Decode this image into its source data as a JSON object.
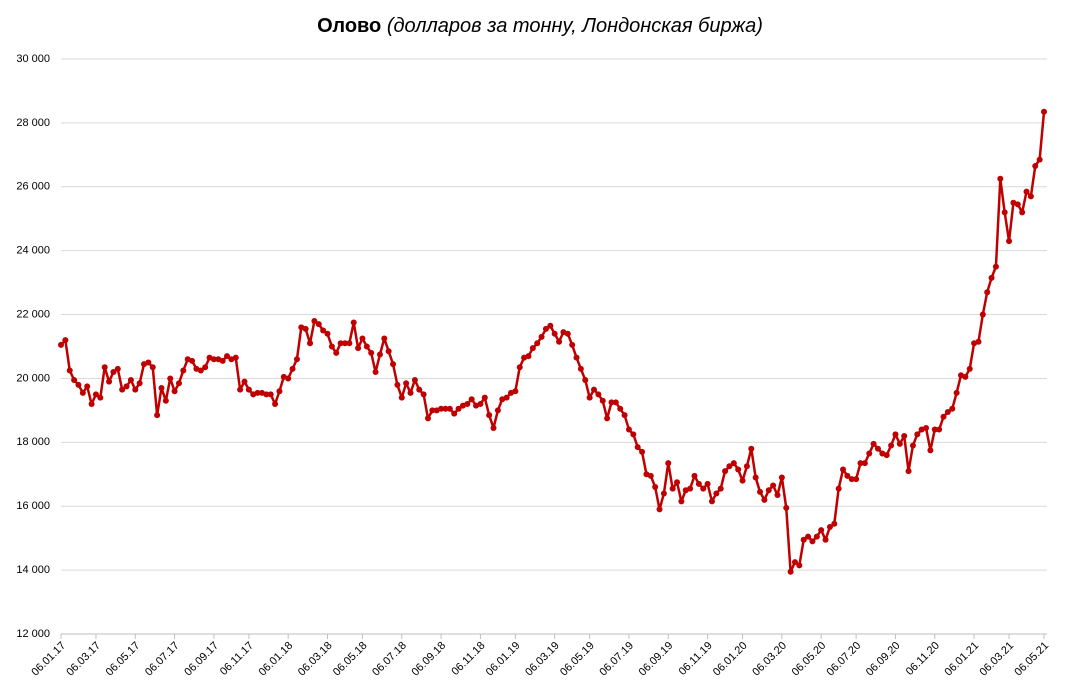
{
  "chart_data": {
    "type": "line",
    "title": "Олово",
    "subtitle": "(долларов за тонну, Лондонская биржа)",
    "categories": [
      "06.01.17",
      null,
      null,
      null,
      null,
      null,
      null,
      null,
      "06.03.17",
      null,
      null,
      null,
      null,
      null,
      null,
      null,
      null,
      "06.05.17",
      null,
      null,
      null,
      null,
      null,
      null,
      null,
      null,
      "06.07.17",
      null,
      null,
      null,
      null,
      null,
      null,
      null,
      null,
      "06.09.17",
      null,
      null,
      null,
      null,
      null,
      null,
      null,
      "06.11.17",
      null,
      null,
      null,
      null,
      null,
      null,
      null,
      null,
      "06.01.18",
      null,
      null,
      null,
      null,
      null,
      null,
      null,
      null,
      "06.03.18",
      null,
      null,
      null,
      null,
      null,
      null,
      null,
      "06.05.18",
      null,
      null,
      null,
      null,
      null,
      null,
      null,
      null,
      "06.07.18",
      null,
      null,
      null,
      null,
      null,
      null,
      null,
      null,
      "06.09.18",
      null,
      null,
      null,
      null,
      null,
      null,
      null,
      null,
      "06.11.18",
      null,
      null,
      null,
      null,
      null,
      null,
      null,
      "06.01.19",
      null,
      null,
      null,
      null,
      null,
      null,
      null,
      null,
      "06.03.19",
      null,
      null,
      null,
      null,
      null,
      null,
      null,
      "06.05.19",
      null,
      null,
      null,
      null,
      null,
      null,
      null,
      null,
      "06.07.19",
      null,
      null,
      null,
      null,
      null,
      null,
      null,
      null,
      "06.09.19",
      null,
      null,
      null,
      null,
      null,
      null,
      null,
      null,
      "06.11.19",
      null,
      null,
      null,
      null,
      null,
      null,
      null,
      "06.01.20",
      null,
      null,
      null,
      null,
      null,
      null,
      null,
      null,
      "06.03.20",
      null,
      null,
      null,
      null,
      null,
      null,
      null,
      null,
      "06.05.20",
      null,
      null,
      null,
      null,
      null,
      null,
      null,
      "06.07.20",
      null,
      null,
      null,
      null,
      null,
      null,
      null,
      null,
      "06.09.20",
      null,
      null,
      null,
      null,
      null,
      null,
      null,
      null,
      "06.11.20",
      null,
      null,
      null,
      null,
      null,
      null,
      null,
      null,
      "06.01.21",
      null,
      null,
      null,
      null,
      null,
      null,
      null,
      "06.03.21",
      null,
      null,
      null,
      null,
      null,
      null,
      null,
      "06.05.21"
    ],
    "values": [
      21050,
      21200,
      20250,
      19950,
      19800,
      19550,
      19750,
      19200,
      19500,
      19400,
      20350,
      19900,
      20200,
      20300,
      19650,
      19750,
      19950,
      19650,
      19850,
      20450,
      20500,
      20350,
      18850,
      19700,
      19300,
      20000,
      19600,
      19850,
      20250,
      20600,
      20550,
      20300,
      20250,
      20350,
      20650,
      20600,
      20600,
      20550,
      20700,
      20600,
      20650,
      19650,
      19900,
      19650,
      19500,
      19550,
      19550,
      19500,
      19500,
      19200,
      19600,
      20050,
      20000,
      20300,
      20600,
      21600,
      21550,
      21100,
      21800,
      21700,
      21500,
      21400,
      21000,
      20800,
      21100,
      21100,
      21100,
      21750,
      20950,
      21250,
      21000,
      20800,
      20200,
      20750,
      21250,
      20850,
      20450,
      19800,
      19400,
      19850,
      19550,
      19950,
      19650,
      19500,
      18750,
      19000,
      19000,
      19050,
      19050,
      19050,
      18900,
      19050,
      19150,
      19200,
      19350,
      19150,
      19200,
      19400,
      18850,
      18450,
      19000,
      19350,
      19400,
      19550,
      19600,
      20350,
      20650,
      20700,
      20950,
      21100,
      21300,
      21550,
      21650,
      21400,
      21150,
      21450,
      21400,
      21050,
      20650,
      20300,
      19950,
      19400,
      19650,
      19500,
      19300,
      18750,
      19250,
      19250,
      19050,
      18850,
      18400,
      18250,
      17850,
      17700,
      17000,
      16950,
      16600,
      15900,
      16400,
      17350,
      16550,
      16750,
      16150,
      16500,
      16550,
      16950,
      16700,
      16550,
      16700,
      16150,
      16400,
      16550,
      17100,
      17250,
      17350,
      17150,
      16800,
      17250,
      17800,
      16900,
      16450,
      16200,
      16500,
      16650,
      16350,
      16900,
      15950,
      13950,
      14250,
      14150,
      14950,
      15050,
      14900,
      15050,
      15250,
      14950,
      15350,
      15450,
      16550,
      17150,
      16950,
      16850,
      16850,
      17350,
      17350,
      17650,
      17950,
      17800,
      17650,
      17600,
      17900,
      18250,
      17950,
      18200,
      17100,
      17900,
      18250,
      18400,
      18450,
      17750,
      18400,
      18400,
      18800,
      18950,
      19050,
      19550,
      20100,
      20050,
      20300,
      21100,
      21150,
      22000,
      22700,
      23150,
      23500,
      26250,
      25200,
      24300,
      25500,
      25450,
      25200,
      25850,
      25700,
      26650,
      26850,
      28350
    ],
    "color": "#c00000",
    "ylim": [
      12000,
      30000
    ],
    "yticks": [
      {
        "value": 12000,
        "label": "12 000"
      },
      {
        "value": 14000,
        "label": "14 000"
      },
      {
        "value": 16000,
        "label": "16 000"
      },
      {
        "value": 18000,
        "label": "18 000"
      },
      {
        "value": 20000,
        "label": "20 000"
      },
      {
        "value": 22000,
        "label": "22 000"
      },
      {
        "value": 24000,
        "label": "24 000"
      },
      {
        "value": 26000,
        "label": "26 000"
      },
      {
        "value": 28000,
        "label": "28 000"
      },
      {
        "value": 30000,
        "label": "30 000"
      }
    ],
    "grid": true
  }
}
